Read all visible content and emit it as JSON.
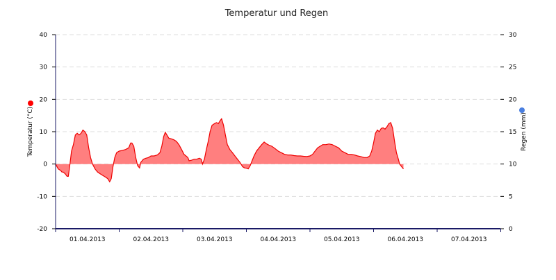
{
  "chart_data": {
    "type": "area",
    "title": "Temperatur und Regen",
    "y_left": {
      "label": "Temperatur (°C)",
      "ylim": [
        -20,
        40
      ],
      "ticks": [
        -20,
        -10,
        0,
        10,
        20,
        30,
        40
      ]
    },
    "y_right": {
      "label": "Regen (mm)",
      "ylim": [
        0,
        30
      ],
      "ticks": [
        0,
        5,
        10,
        15,
        20,
        25,
        30
      ]
    },
    "x": {
      "tick_labels": [
        "01.04.2013",
        "02.04.2013",
        "03.04.2013",
        "04.04.2013",
        "05.04.2013",
        "06.04.2013",
        "07.04.2013"
      ]
    },
    "grid": "horizontal dashed",
    "legend_markers": [
      {
        "axis": "left",
        "color": "#ff0000"
      },
      {
        "axis": "right",
        "color": "#4a7fe0"
      }
    ],
    "colors": {
      "line": "#ee0000",
      "fill": "#ff7f7f",
      "axis": "#1a1a66",
      "grid": "#dddddd"
    },
    "series": [
      {
        "axis": "left",
        "points": [
          [
            0.0,
            0.0
          ],
          [
            0.04,
            -1.5
          ],
          [
            0.08,
            -2.0
          ],
          [
            0.1,
            -2.5
          ],
          [
            0.12,
            -2.5
          ],
          [
            0.15,
            -3.0
          ],
          [
            0.18,
            -3.8
          ],
          [
            0.2,
            -3.8
          ],
          [
            0.22,
            -1.0
          ],
          [
            0.25,
            4.0
          ],
          [
            0.28,
            6.0
          ],
          [
            0.31,
            9.0
          ],
          [
            0.34,
            9.5
          ],
          [
            0.37,
            9.0
          ],
          [
            0.4,
            9.5
          ],
          [
            0.43,
            10.5
          ],
          [
            0.46,
            10.0
          ],
          [
            0.49,
            9.0
          ],
          [
            0.52,
            5.0
          ],
          [
            0.55,
            2.0
          ],
          [
            0.58,
            0.0
          ],
          [
            0.62,
            -1.5
          ],
          [
            0.66,
            -2.5
          ],
          [
            0.7,
            -3.0
          ],
          [
            0.74,
            -3.5
          ],
          [
            0.78,
            -4.0
          ],
          [
            0.82,
            -4.5
          ],
          [
            0.85,
            -5.5
          ],
          [
            0.875,
            -4.5
          ],
          [
            0.9,
            -1.0
          ],
          [
            0.93,
            2.0
          ],
          [
            0.96,
            3.5
          ],
          [
            1.0,
            4.0
          ],
          [
            1.05,
            4.2
          ],
          [
            1.1,
            4.5
          ],
          [
            1.15,
            5.0
          ],
          [
            1.18,
            6.5
          ],
          [
            1.2,
            6.5
          ],
          [
            1.23,
            5.5
          ],
          [
            1.26,
            2.0
          ],
          [
            1.29,
            -0.5
          ],
          [
            1.32,
            -1.2
          ],
          [
            1.34,
            0.5
          ],
          [
            1.38,
            1.5
          ],
          [
            1.42,
            1.8
          ],
          [
            1.46,
            2.0
          ],
          [
            1.5,
            2.5
          ],
          [
            1.55,
            2.5
          ],
          [
            1.6,
            2.8
          ],
          [
            1.64,
            3.5
          ],
          [
            1.67,
            5.5
          ],
          [
            1.7,
            8.5
          ],
          [
            1.725,
            9.8
          ],
          [
            1.75,
            9.0
          ],
          [
            1.78,
            8.0
          ],
          [
            1.82,
            7.8
          ],
          [
            1.86,
            7.5
          ],
          [
            1.9,
            7.0
          ],
          [
            1.94,
            6.0
          ],
          [
            1.98,
            4.5
          ],
          [
            2.02,
            3.0
          ],
          [
            2.05,
            2.5
          ],
          [
            2.08,
            2.0
          ],
          [
            2.1,
            1.0
          ],
          [
            2.14,
            1.2
          ],
          [
            2.18,
            1.5
          ],
          [
            2.22,
            1.5
          ],
          [
            2.26,
            1.8
          ],
          [
            2.29,
            1.5
          ],
          [
            2.31,
            0.0
          ],
          [
            2.34,
            1.5
          ],
          [
            2.37,
            4.5
          ],
          [
            2.4,
            7.0
          ],
          [
            2.43,
            10.0
          ],
          [
            2.46,
            12.0
          ],
          [
            2.5,
            12.5
          ],
          [
            2.53,
            12.8
          ],
          [
            2.56,
            12.5
          ],
          [
            2.59,
            13.5
          ],
          [
            2.61,
            14.0
          ],
          [
            2.64,
            12.0
          ],
          [
            2.67,
            9.0
          ],
          [
            2.7,
            6.0
          ],
          [
            2.74,
            4.5
          ],
          [
            2.78,
            3.5
          ],
          [
            2.82,
            2.5
          ],
          [
            2.86,
            1.5
          ],
          [
            2.9,
            0.5
          ],
          [
            2.94,
            -0.8
          ],
          [
            2.97,
            -1.2
          ],
          [
            3.0,
            -1.3
          ],
          [
            3.03,
            -1.5
          ],
          [
            3.06,
            -0.5
          ],
          [
            3.09,
            1.0
          ],
          [
            3.12,
            2.5
          ],
          [
            3.16,
            4.0
          ],
          [
            3.2,
            5.0
          ],
          [
            3.24,
            6.0
          ],
          [
            3.28,
            6.8
          ],
          [
            3.32,
            6.2
          ],
          [
            3.36,
            5.8
          ],
          [
            3.4,
            5.5
          ],
          [
            3.45,
            4.8
          ],
          [
            3.5,
            4.0
          ],
          [
            3.55,
            3.5
          ],
          [
            3.6,
            3.0
          ],
          [
            3.65,
            2.8
          ],
          [
            3.7,
            2.8
          ],
          [
            3.75,
            2.6
          ],
          [
            3.8,
            2.5
          ],
          [
            3.85,
            2.5
          ],
          [
            3.9,
            2.4
          ],
          [
            3.95,
            2.3
          ],
          [
            4.0,
            2.5
          ],
          [
            4.04,
            3.0
          ],
          [
            4.08,
            4.0
          ],
          [
            4.12,
            5.0
          ],
          [
            4.16,
            5.5
          ],
          [
            4.2,
            6.0
          ],
          [
            4.25,
            6.0
          ],
          [
            4.3,
            6.2
          ],
          [
            4.35,
            6.0
          ],
          [
            4.4,
            5.5
          ],
          [
            4.45,
            5.0
          ],
          [
            4.5,
            4.0
          ],
          [
            4.55,
            3.5
          ],
          [
            4.6,
            3.0
          ],
          [
            4.65,
            3.0
          ],
          [
            4.7,
            2.8
          ],
          [
            4.75,
            2.5
          ],
          [
            4.8,
            2.3
          ],
          [
            4.85,
            2.0
          ],
          [
            4.9,
            2.0
          ],
          [
            4.94,
            2.5
          ],
          [
            4.97,
            4.0
          ],
          [
            5.0,
            6.5
          ],
          [
            5.03,
            9.5
          ],
          [
            5.06,
            10.5
          ],
          [
            5.09,
            10.0
          ],
          [
            5.12,
            11.0
          ],
          [
            5.15,
            11.2
          ],
          [
            5.18,
            10.8
          ],
          [
            5.21,
            11.5
          ],
          [
            5.24,
            12.5
          ],
          [
            5.27,
            12.8
          ],
          [
            5.3,
            11.0
          ],
          [
            5.33,
            7.0
          ],
          [
            5.36,
            3.5
          ],
          [
            5.39,
            1.5
          ],
          [
            5.41,
            0.0
          ],
          [
            5.44,
            -0.8
          ],
          [
            5.47,
            -1.5
          ]
        ]
      }
    ]
  }
}
